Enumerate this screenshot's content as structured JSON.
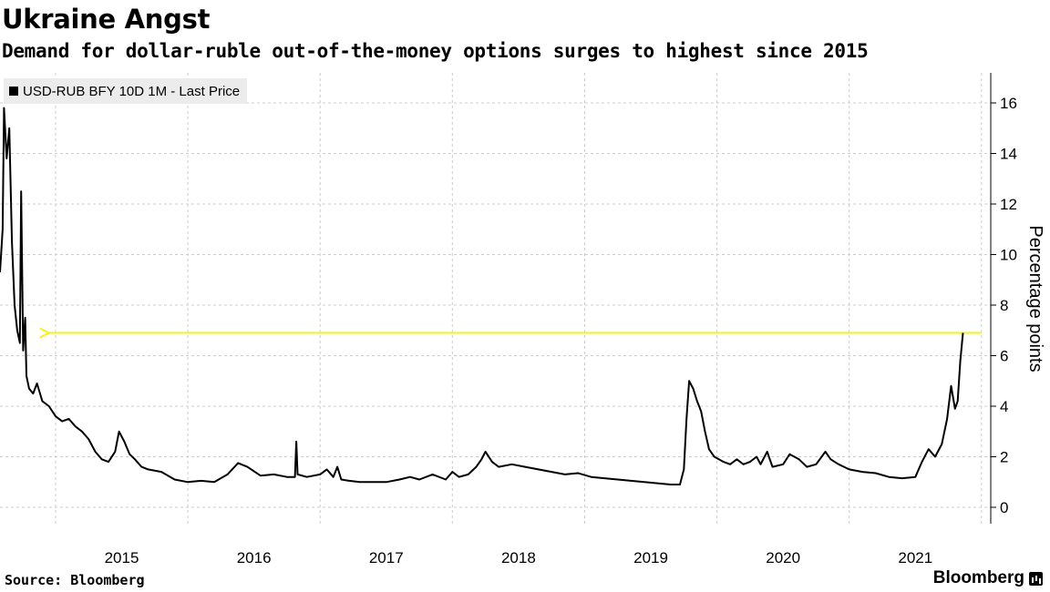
{
  "header": {
    "title": "Ukraine Angst",
    "subtitle": "Demand for dollar-ruble out-of-the-money options surges to highest since 2015"
  },
  "footer": {
    "source": "Source: Bloomberg",
    "brand": "Bloomberg"
  },
  "chart_data": {
    "type": "line",
    "legend": [
      "USD-RUB BFY 10D 1M - Last Price"
    ],
    "legend_position": "top-left",
    "ylabel": "Percentage points",
    "ylim": [
      0,
      16
    ],
    "yticks": [
      0,
      2,
      4,
      6,
      8,
      10,
      12,
      14,
      16
    ],
    "xticks": [
      "2015",
      "2016",
      "2017",
      "2018",
      "2019",
      "2020",
      "2021"
    ],
    "xlim": [
      2014.58,
      2022.07
    ],
    "grid": true,
    "colors": {
      "series": "#000000",
      "arrow": "#f7f01a",
      "grid": "#cccccc"
    },
    "annotation": {
      "type": "arrow",
      "y": 6.9,
      "from_x": 2022.0,
      "to_x": 2014.95
    },
    "series": [
      {
        "points": [
          [
            2014.58,
            9.3
          ],
          [
            2014.6,
            11.0
          ],
          [
            2014.61,
            15.8
          ],
          [
            2014.63,
            13.8
          ],
          [
            2014.65,
            15.0
          ],
          [
            2014.67,
            10.5
          ],
          [
            2014.69,
            8.0
          ],
          [
            2014.71,
            7.0
          ],
          [
            2014.73,
            6.5
          ],
          [
            2014.74,
            12.5
          ],
          [
            2014.755,
            6.2
          ],
          [
            2014.77,
            7.5
          ],
          [
            2014.78,
            5.2
          ],
          [
            2014.8,
            4.7
          ],
          [
            2014.83,
            4.5
          ],
          [
            2014.86,
            4.9
          ],
          [
            2014.9,
            4.2
          ],
          [
            2014.95,
            4.0
          ],
          [
            2015.0,
            3.6
          ],
          [
            2015.05,
            3.4
          ],
          [
            2015.1,
            3.5
          ],
          [
            2015.15,
            3.2
          ],
          [
            2015.2,
            3.0
          ],
          [
            2015.25,
            2.7
          ],
          [
            2015.3,
            2.2
          ],
          [
            2015.35,
            1.9
          ],
          [
            2015.4,
            1.8
          ],
          [
            2015.45,
            2.2
          ],
          [
            2015.48,
            3.0
          ],
          [
            2015.52,
            2.6
          ],
          [
            2015.56,
            2.1
          ],
          [
            2015.6,
            1.9
          ],
          [
            2015.65,
            1.6
          ],
          [
            2015.7,
            1.5
          ],
          [
            2015.8,
            1.4
          ],
          [
            2015.9,
            1.1
          ],
          [
            2016.0,
            1.0
          ],
          [
            2016.1,
            1.05
          ],
          [
            2016.2,
            1.0
          ],
          [
            2016.3,
            1.3
          ],
          [
            2016.38,
            1.75
          ],
          [
            2016.45,
            1.6
          ],
          [
            2016.55,
            1.25
          ],
          [
            2016.65,
            1.3
          ],
          [
            2016.75,
            1.2
          ],
          [
            2016.81,
            1.2
          ],
          [
            2016.82,
            2.6
          ],
          [
            2016.83,
            1.3
          ],
          [
            2016.9,
            1.2
          ],
          [
            2017.0,
            1.3
          ],
          [
            2017.05,
            1.5
          ],
          [
            2017.1,
            1.2
          ],
          [
            2017.13,
            1.6
          ],
          [
            2017.16,
            1.1
          ],
          [
            2017.22,
            1.05
          ],
          [
            2017.3,
            1.0
          ],
          [
            2017.4,
            1.0
          ],
          [
            2017.5,
            1.0
          ],
          [
            2017.6,
            1.1
          ],
          [
            2017.68,
            1.2
          ],
          [
            2017.75,
            1.1
          ],
          [
            2017.85,
            1.3
          ],
          [
            2017.95,
            1.1
          ],
          [
            2018.0,
            1.4
          ],
          [
            2018.05,
            1.2
          ],
          [
            2018.12,
            1.3
          ],
          [
            2018.18,
            1.6
          ],
          [
            2018.22,
            1.9
          ],
          [
            2018.25,
            2.2
          ],
          [
            2018.3,
            1.8
          ],
          [
            2018.35,
            1.6
          ],
          [
            2018.45,
            1.7
          ],
          [
            2018.55,
            1.6
          ],
          [
            2018.65,
            1.5
          ],
          [
            2018.75,
            1.4
          ],
          [
            2018.85,
            1.3
          ],
          [
            2018.95,
            1.35
          ],
          [
            2019.05,
            1.2
          ],
          [
            2019.15,
            1.15
          ],
          [
            2019.25,
            1.1
          ],
          [
            2019.35,
            1.05
          ],
          [
            2019.45,
            1.0
          ],
          [
            2019.55,
            0.95
          ],
          [
            2019.65,
            0.9
          ],
          [
            2019.72,
            0.9
          ],
          [
            2019.75,
            1.5
          ],
          [
            2019.77,
            3.5
          ],
          [
            2019.79,
            5.0
          ],
          [
            2019.82,
            4.7
          ],
          [
            2019.85,
            4.2
          ],
          [
            2019.88,
            3.8
          ],
          [
            2019.91,
            3.0
          ],
          [
            2019.94,
            2.3
          ],
          [
            2019.98,
            2.0
          ],
          [
            2020.05,
            1.8
          ],
          [
            2020.1,
            1.7
          ],
          [
            2020.15,
            1.9
          ],
          [
            2020.2,
            1.7
          ],
          [
            2020.25,
            1.8
          ],
          [
            2020.3,
            2.0
          ],
          [
            2020.33,
            1.7
          ],
          [
            2020.38,
            2.2
          ],
          [
            2020.42,
            1.6
          ],
          [
            2020.5,
            1.7
          ],
          [
            2020.55,
            2.1
          ],
          [
            2020.62,
            1.9
          ],
          [
            2020.68,
            1.6
          ],
          [
            2020.75,
            1.7
          ],
          [
            2020.82,
            2.2
          ],
          [
            2020.86,
            1.9
          ],
          [
            2020.92,
            1.7
          ],
          [
            2021.0,
            1.5
          ],
          [
            2021.1,
            1.4
          ],
          [
            2021.2,
            1.35
          ],
          [
            2021.3,
            1.2
          ],
          [
            2021.4,
            1.15
          ],
          [
            2021.5,
            1.2
          ],
          [
            2021.55,
            1.8
          ],
          [
            2021.6,
            2.3
          ],
          [
            2021.65,
            2.0
          ],
          [
            2021.7,
            2.5
          ],
          [
            2021.74,
            3.5
          ],
          [
            2021.77,
            4.8
          ],
          [
            2021.8,
            3.9
          ],
          [
            2021.82,
            4.2
          ],
          [
            2021.84,
            5.8
          ],
          [
            2021.86,
            6.9
          ]
        ]
      }
    ]
  }
}
